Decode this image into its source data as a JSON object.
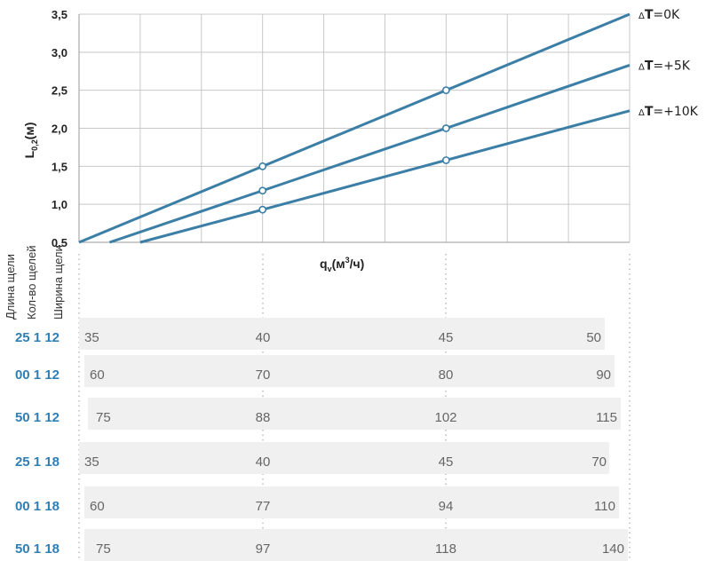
{
  "chart_data": {
    "type": "line",
    "ylabel": {
      "main": "L",
      "sub": "0,2",
      "suffix": "(м)"
    },
    "xlabel": {
      "main": "q",
      "sub": "v",
      "mid": "(м",
      "sup": "3",
      "suffix": "/ч)"
    },
    "ylim": [
      0.5,
      3.5
    ],
    "yticks": [
      "3,5",
      "3,0",
      "2,5",
      "2,0",
      "1,5",
      "1,0",
      "0,5"
    ],
    "ytick_values": [
      3.5,
      3.0,
      2.5,
      2.0,
      1.5,
      1.0,
      0.5
    ],
    "x_domain": [
      0,
      9
    ],
    "grid": true,
    "series": [
      {
        "name": "ΔT=0K",
        "label_prefix": "Δ",
        "label_bold": "T",
        "label_rest": "=0K",
        "x": [
          0,
          3,
          6,
          9
        ],
        "y": [
          0.5,
          1.5,
          2.5,
          3.5
        ],
        "markers": [
          1,
          2
        ]
      },
      {
        "name": "ΔT=+5K",
        "label_prefix": "Δ",
        "label_bold": "T",
        "label_rest": "=+5K",
        "x": [
          0.5,
          3,
          6,
          9
        ],
        "y": [
          0.5,
          1.18,
          2.0,
          2.83
        ],
        "markers": [
          1,
          2
        ]
      },
      {
        "name": "ΔT=+10K",
        "label_prefix": "Δ",
        "label_bold": "T",
        "label_rest": "=+10K",
        "x": [
          1,
          3,
          6,
          9
        ],
        "y": [
          0.5,
          0.93,
          1.58,
          2.23
        ],
        "markers": [
          1,
          2
        ]
      }
    ],
    "line_color": "#3b7ea6"
  },
  "table": {
    "headers": [
      "Длина щели",
      "Кол-во щелей",
      "Ширина щели"
    ],
    "rows": [
      {
        "key": [
          "25",
          "1",
          "12"
        ],
        "values": [
          "35",
          "40",
          "45",
          "50"
        ]
      },
      {
        "key": [
          "00",
          "1",
          "12"
        ],
        "values": [
          "60",
          "70",
          "80",
          "90"
        ]
      },
      {
        "key": [
          "50",
          "1",
          "12"
        ],
        "values": [
          "75",
          "88",
          "102",
          "115"
        ]
      },
      {
        "key": [
          "25",
          "1",
          "18"
        ],
        "values": [
          "35",
          "40",
          "45",
          "70"
        ]
      },
      {
        "key": [
          "00",
          "1",
          "18"
        ],
        "values": [
          "60",
          "77",
          "94",
          "110"
        ]
      },
      {
        "key": [
          "50",
          "1",
          "18"
        ],
        "values": [
          "75",
          "97",
          "118",
          "140"
        ]
      }
    ],
    "key_color": "#2f7fb5",
    "band_color": "#f0f0f0"
  }
}
